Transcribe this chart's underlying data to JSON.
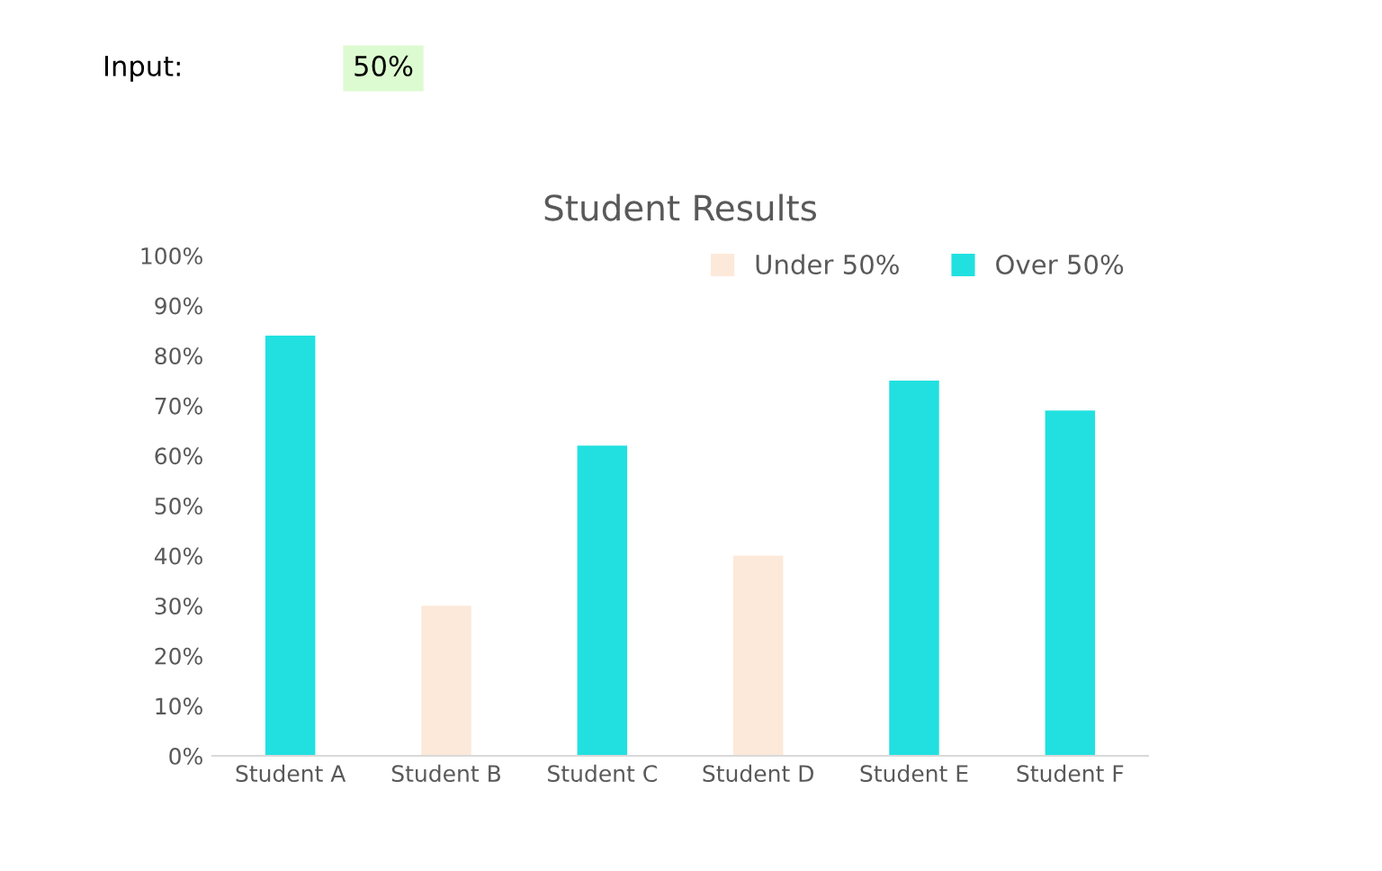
{
  "chart_data": {
    "type": "bar",
    "title": "Student Results",
    "categories": [
      "Student A",
      "Student B",
      "Student C",
      "Student D",
      "Student E",
      "Student F"
    ],
    "series": [
      {
        "name": "Under 50%",
        "color": "#fde9d9",
        "values": [
          null,
          30,
          null,
          40,
          null,
          null
        ]
      },
      {
        "name": "Over 50%",
        "color": "#22e0e0",
        "values": [
          84,
          null,
          62,
          null,
          75,
          69
        ]
      }
    ],
    "ylim": [
      0,
      100
    ],
    "yticks": [
      {
        "value": 0,
        "label": "0%"
      },
      {
        "value": 10,
        "label": "10%"
      },
      {
        "value": 20,
        "label": "20%"
      },
      {
        "value": 30,
        "label": "30%"
      },
      {
        "value": 40,
        "label": "40%"
      },
      {
        "value": 50,
        "label": "50%"
      },
      {
        "value": 60,
        "label": "60%"
      },
      {
        "value": 70,
        "label": "70%"
      },
      {
        "value": 80,
        "label": "80%"
      },
      {
        "value": 90,
        "label": "90%"
      },
      {
        "value": 100,
        "label": "100%"
      }
    ],
    "grid": false,
    "legend": "top right",
    "annotations": [
      "Input:",
      "50%"
    ]
  }
}
